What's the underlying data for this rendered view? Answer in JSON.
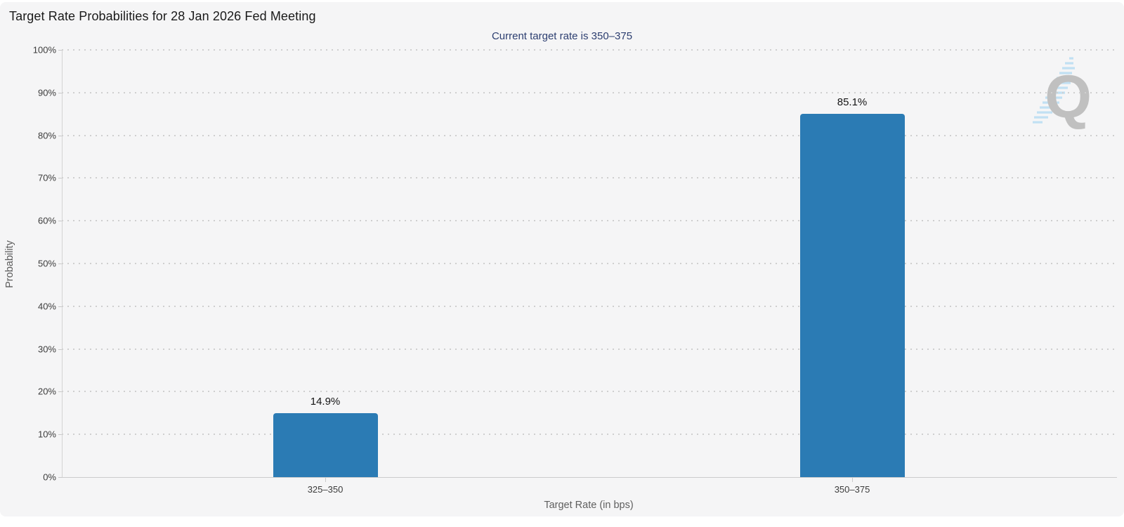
{
  "chart_data": {
    "type": "bar",
    "title": "Target Rate Probabilities for 28 Jan 2026 Fed Meeting",
    "subtitle": "Current target rate is 350–375",
    "categories": [
      "325–350",
      "350–375"
    ],
    "values": [
      14.9,
      85.1
    ],
    "value_labels": [
      "14.9%",
      "85.1%"
    ],
    "xlabel": "Target Rate (in bps)",
    "ylabel": "Probability",
    "ylim": [
      0,
      100
    ],
    "yticks": [
      0,
      10,
      20,
      30,
      40,
      50,
      60,
      70,
      80,
      90,
      100
    ],
    "ytick_labels": [
      "0%",
      "10%",
      "20%",
      "30%",
      "40%",
      "50%",
      "60%",
      "70%",
      "80%",
      "90%",
      "100%"
    ],
    "grid": "horizontal-dotted",
    "legend_position": "none",
    "bar_color": "#2b7bb4",
    "subtitle_color": "#2c3e70"
  },
  "header": {
    "menu_icon": "hamburger-menu-icon"
  },
  "watermark": {
    "letter": "Q"
  }
}
